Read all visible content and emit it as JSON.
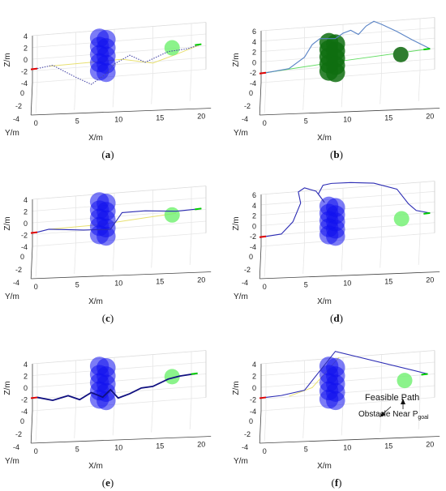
{
  "figure": {
    "panels": [
      {
        "id": "a",
        "caption_open": "(",
        "caption_letter": "a",
        "caption_close": ")"
      },
      {
        "id": "b",
        "caption_open": "(",
        "caption_letter": "b",
        "caption_close": ")"
      },
      {
        "id": "c",
        "caption_open": "(",
        "caption_letter": "c",
        "caption_close": ")"
      },
      {
        "id": "d",
        "caption_open": "(",
        "caption_letter": "d",
        "caption_close": ")"
      },
      {
        "id": "e",
        "caption_open": "(",
        "caption_letter": "e",
        "caption_close": ")"
      },
      {
        "id": "f",
        "caption_open": "(",
        "caption_letter": "f",
        "caption_close": ")"
      }
    ]
  },
  "chart_data": [
    {
      "panel": "a",
      "type": "line",
      "xlabel": "X/m",
      "ylabel": "Y/m",
      "zlabel": "Z/m",
      "xticks": [
        "0",
        "5",
        "10",
        "15",
        "20"
      ],
      "yticks": [
        "-4",
        "-2",
        "0"
      ],
      "zticks": [
        "4",
        "2",
        "0",
        "-2",
        "-4"
      ],
      "xlim": [
        0,
        20
      ],
      "zlim": [
        -4,
        4
      ],
      "colors": {
        "path": "#4a4aa8",
        "alt_path": "#e8e070",
        "obstacles": "#1010ee",
        "goal_obstacle": "#6ef06e",
        "start": "#e00000",
        "goal": "#00cc00"
      },
      "obstacles": {
        "column_x": 8.5,
        "centers_z": [
          2.4,
          1.2,
          0,
          -1.2,
          -2.4
        ],
        "radius": 1.3
      },
      "goal_obstacle": {
        "x": 17.5,
        "z": 0.2,
        "radius": 1.0
      },
      "start": {
        "x": 0,
        "z": -1.3
      },
      "goal": {
        "x": 21.3,
        "z": 0.4
      },
      "series": [
        {
          "style": "dotted",
          "x": [
            0,
            2,
            5,
            7,
            9,
            10,
            12,
            14,
            17,
            19.5,
            21.3
          ],
          "z": [
            -1.3,
            -1.0,
            -3.0,
            -4.2,
            -2.8,
            -1.5,
            -0.4,
            -1.6,
            -0.3,
            -0.1,
            0.4
          ]
        },
        {
          "style": "alt",
          "x": [
            1.5,
            7,
            11,
            15,
            18,
            21.3
          ],
          "z": [
            -1.1,
            -1.0,
            -0.9,
            -1.8,
            -0.8,
            0.4
          ]
        }
      ]
    },
    {
      "panel": "b",
      "type": "line",
      "xlabel": "X/m",
      "ylabel": "Y/m",
      "zlabel": "Z/m",
      "xticks": [
        "0",
        "5",
        "10",
        "15",
        "20"
      ],
      "yticks": [
        "-4",
        "-2",
        "0"
      ],
      "zticks": [
        "6",
        "4",
        "2",
        "0",
        "-2",
        "-4"
      ],
      "xlim": [
        0,
        20
      ],
      "zlim": [
        -4,
        6
      ],
      "colors": {
        "path": "#5a84c6",
        "alt_path": "#66dd66",
        "obstacles": "#0f6e10",
        "goal_obstacle": "#2f7d2f",
        "start": "#e00000",
        "goal": "#00cc00"
      },
      "obstacles": {
        "column_x": 8.6,
        "centers_z": [
          2.6,
          1.4,
          0.2,
          -1.0,
          -2.2
        ],
        "radius": 1.3
      },
      "goal_obstacle": {
        "x": 17.5,
        "z": -0.3,
        "radius": 1.0
      },
      "start": {
        "x": 0,
        "z": -1.6
      },
      "goal": {
        "x": 21.3,
        "z": 0.3
      },
      "series": [
        {
          "style": "solid",
          "x": [
            0,
            3,
            5,
            6,
            7,
            9,
            10,
            11,
            12,
            13,
            14,
            15,
            17,
            19,
            21.3
          ],
          "z": [
            -1.6,
            -1.2,
            0.5,
            2.5,
            3.4,
            3.2,
            4.0,
            4.4,
            3.6,
            4.9,
            5.6,
            5.0,
            3.6,
            2.0,
            0.3
          ]
        },
        {
          "style": "solid",
          "x": [
            0,
            10,
            21.3
          ],
          "z": [
            -1.6,
            -0.6,
            0.3
          ]
        }
      ]
    },
    {
      "panel": "c",
      "type": "line",
      "xlabel": "X/m",
      "ylabel": "Y/m",
      "zlabel": "Z/m",
      "xticks": [
        "0",
        "5",
        "10",
        "15",
        "20"
      ],
      "yticks": [
        "-4",
        "-2",
        "0"
      ],
      "zticks": [
        "4",
        "2",
        "0",
        "-2",
        "-4"
      ],
      "xlim": [
        0,
        20
      ],
      "zlim": [
        -4,
        4
      ],
      "colors": {
        "path": "#2c2cb4",
        "alt_path": "#e8e070",
        "obstacles": "#1010ee",
        "goal_obstacle": "#6ef06e",
        "start": "#e00000",
        "goal": "#00cc00"
      },
      "obstacles": {
        "column_x": 8.5,
        "centers_z": [
          2.4,
          1.2,
          0,
          -1.2,
          -2.4
        ],
        "radius": 1.3
      },
      "goal_obstacle": {
        "x": 17.5,
        "z": -0.3,
        "radius": 1.0
      },
      "start": {
        "x": 0,
        "z": -1.3
      },
      "goal": {
        "x": 21.3,
        "z": 0.3
      },
      "series": [
        {
          "style": "solid",
          "x": [
            0,
            1.5,
            6,
            9.5,
            11,
            14,
            18,
            21.3
          ],
          "z": [
            -1.3,
            -1.0,
            -1.5,
            -1.7,
            0.6,
            0.6,
            0.2,
            0.3
          ]
        },
        {
          "style": "alt",
          "x": [
            1.5,
            8,
            14,
            18
          ],
          "z": [
            -1.0,
            -0.9,
            -0.4,
            -0.1
          ]
        }
      ]
    },
    {
      "panel": "d",
      "type": "line",
      "xlabel": "X/m",
      "ylabel": "Y/m",
      "zlabel": "Z/m",
      "xticks": [
        "0",
        "5",
        "10",
        "15",
        "20"
      ],
      "yticks": [
        "-4",
        "-2",
        "0"
      ],
      "zticks": [
        "6",
        "4",
        "2",
        "0",
        "-2",
        "-4"
      ],
      "xlim": [
        0,
        20
      ],
      "zlim": [
        -4,
        6
      ],
      "colors": {
        "path": "#2c2cb4",
        "alt_path": "#e8e070",
        "obstacles": "#1010ee",
        "goal_obstacle": "#6ef06e",
        "start": "#e00000",
        "goal": "#00cc00"
      },
      "obstacles": {
        "column_x": 8.6,
        "centers_z": [
          2.6,
          1.4,
          0.2,
          -1.0,
          -2.2
        ],
        "radius": 1.3
      },
      "goal_obstacle": {
        "x": 17.6,
        "z": -0.4,
        "radius": 1.0
      },
      "start": {
        "x": 0,
        "z": -1.6
      },
      "goal": {
        "x": 21.3,
        "z": 0.2
      },
      "series": [
        {
          "style": "solid",
          "x": [
            0,
            2,
            3.5,
            4.5,
            4.2,
            5,
            6.5,
            7.6,
            6.8,
            7.4,
            8.5,
            11,
            14,
            17,
            18.5,
            19.5,
            21.3
          ],
          "z": [
            -1.6,
            -1.4,
            0.5,
            3.5,
            5.4,
            6.0,
            5.3,
            3.3,
            4.8,
            6.2,
            6.4,
            6.3,
            5.9,
            4.6,
            2.0,
            0.8,
            0.2
          ]
        }
      ]
    },
    {
      "panel": "e",
      "type": "line",
      "xlabel": "X/m",
      "ylabel": "Y/m",
      "zlabel": "Z/m",
      "xticks": [
        "0",
        "5",
        "10",
        "15",
        "20"
      ],
      "yticks": [
        "-4",
        "-2",
        "0"
      ],
      "zticks": [
        "4",
        "2",
        "0",
        "-2",
        "-4"
      ],
      "xlim": [
        0,
        20
      ],
      "zlim": [
        -4,
        4
      ],
      "colors": {
        "path": "#101080",
        "alt_path": "#e8e070",
        "obstacles": "#1010ee",
        "goal_obstacle": "#6ef06e",
        "start": "#e00000",
        "goal": "#00cc00"
      },
      "obstacles": {
        "column_x": 8.5,
        "centers_z": [
          2.4,
          1.2,
          0,
          -1.2,
          -2.4
        ],
        "radius": 1.3
      },
      "goal_obstacle": {
        "x": 17.5,
        "z": 0.1,
        "radius": 1.0
      },
      "start": {
        "x": 0,
        "z": -1.4
      },
      "goal": {
        "x": 20.8,
        "z": 0.3
      },
      "series": [
        {
          "style": "bold",
          "x": [
            0,
            2,
            4,
            5.5,
            7,
            8.5,
            9.5,
            10.5,
            12,
            13.5,
            15,
            17,
            18.5,
            20.8
          ],
          "z": [
            -1.4,
            -2.0,
            -1.5,
            -2.2,
            -1.3,
            -2.1,
            -1.1,
            -2.4,
            -1.9,
            -1.2,
            -1.1,
            -0.2,
            0.1,
            0.3
          ]
        }
      ]
    },
    {
      "panel": "f",
      "type": "line",
      "xlabel": "X/m",
      "ylabel": "Y/m",
      "zlabel": "Z/m",
      "xticks": [
        "0",
        "5",
        "10",
        "15",
        "20"
      ],
      "yticks": [
        "-4",
        "-2",
        "0"
      ],
      "zticks": [
        "4",
        "2",
        "0",
        "-2",
        "-4"
      ],
      "xlim": [
        0,
        20
      ],
      "zlim": [
        -4,
        4
      ],
      "colors": {
        "path": "#2c2cb4",
        "alt_path": "#e8e070",
        "obstacles": "#1010ee",
        "goal_obstacle": "#6ef06e",
        "start": "#e00000",
        "goal": "#00cc00"
      },
      "obstacles": {
        "column_x": 8.6,
        "centers_z": [
          2.4,
          1.2,
          0,
          -1.2,
          -2.4
        ],
        "radius": 1.3
      },
      "goal_obstacle": {
        "x": 18.0,
        "z": -0.5,
        "radius": 1.0
      },
      "start": {
        "x": 0,
        "z": -1.4
      },
      "goal": {
        "x": 21.0,
        "z": 0.2
      },
      "series": [
        {
          "style": "solid",
          "x": [
            0,
            2,
            5,
            9,
            21.0
          ],
          "z": [
            -1.4,
            -1.3,
            -0.8,
            4.5,
            0.2
          ]
        },
        {
          "style": "alt",
          "x": [
            3,
            6,
            8.8,
            9.5
          ],
          "z": [
            -1.5,
            -0.5,
            2.8,
            3.6
          ]
        }
      ],
      "annotations": [
        {
          "text": "Feasible Path"
        },
        {
          "text": "Obstacle Near P",
          "sub": "goal"
        }
      ]
    }
  ]
}
